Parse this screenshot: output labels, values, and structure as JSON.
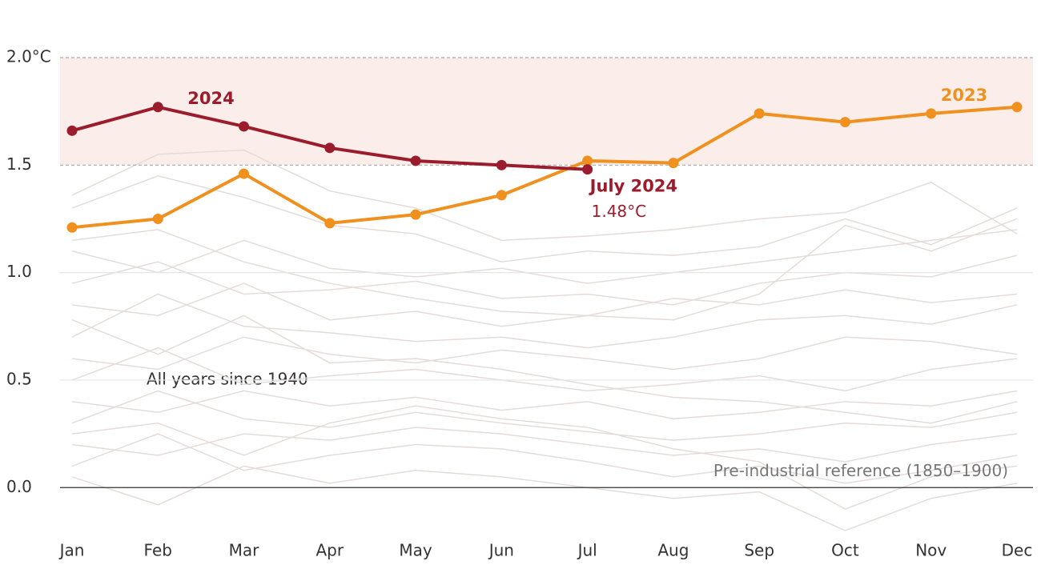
{
  "chart_data": {
    "type": "line",
    "categories": [
      "Jan",
      "Feb",
      "Mar",
      "Apr",
      "May",
      "Jun",
      "Jul",
      "Aug",
      "Sep",
      "Oct",
      "Nov",
      "Dec"
    ],
    "ylim": [
      -0.2,
      2.0
    ],
    "yticks": [
      {
        "value": 0,
        "label": "0.0"
      },
      0.5,
      {
        "value": 1,
        "label": "1.0"
      },
      1.5,
      {
        "value": 2,
        "label": "2.0°C"
      }
    ],
    "shade_range": [
      1.5,
      2.0
    ],
    "shade_color": "#fbeeea",
    "grid": true,
    "series": [
      {
        "name": "2024",
        "color": "#9b1c2c",
        "values": [
          1.66,
          1.77,
          1.68,
          1.58,
          1.52,
          1.5,
          1.48,
          null,
          null,
          null,
          null,
          null
        ],
        "value_labels": [
          null,
          null,
          null,
          null,
          null,
          null,
          "1.48°C",
          null,
          null,
          null,
          null,
          null
        ]
      },
      {
        "name": "2023",
        "color": "#f0901e",
        "values": [
          1.21,
          1.25,
          1.46,
          1.23,
          1.27,
          1.36,
          1.52,
          1.51,
          1.74,
          1.7,
          1.74,
          1.77
        ]
      }
    ],
    "annotations": {
      "latest": "July 2024",
      "background": "All years since 1940",
      "reference": "Pre-industrial reference (1850–1900)"
    },
    "background_color": "#e4dcd8",
    "background_series": [
      [
        1.36,
        1.55,
        1.57,
        1.38,
        1.3,
        1.15,
        1.17,
        1.2,
        1.25,
        1.28,
        1.42,
        1.18
      ],
      [
        1.3,
        1.45,
        1.35,
        1.22,
        1.18,
        1.05,
        1.1,
        1.08,
        1.12,
        1.25,
        1.13,
        1.3
      ],
      [
        1.1,
        1.0,
        1.15,
        1.02,
        0.98,
        1.02,
        0.95,
        1.0,
        1.05,
        1.1,
        1.15,
        1.2
      ],
      [
        0.95,
        1.05,
        0.9,
        0.92,
        0.96,
        0.88,
        0.9,
        0.85,
        0.95,
        1.0,
        0.98,
        1.08
      ],
      [
        0.85,
        0.8,
        0.95,
        0.78,
        0.82,
        0.75,
        0.8,
        0.88,
        0.85,
        0.92,
        0.86,
        0.9
      ],
      [
        0.7,
        0.9,
        0.75,
        0.72,
        0.68,
        0.7,
        0.65,
        0.7,
        0.78,
        0.8,
        0.76,
        0.85
      ],
      [
        0.6,
        0.55,
        0.7,
        0.62,
        0.58,
        0.64,
        0.6,
        0.55,
        0.6,
        0.7,
        0.68,
        0.62
      ],
      [
        0.5,
        0.65,
        0.48,
        0.52,
        0.55,
        0.5,
        0.45,
        0.48,
        0.52,
        0.45,
        0.55,
        0.6
      ],
      [
        0.4,
        0.35,
        0.45,
        0.38,
        0.42,
        0.36,
        0.4,
        0.32,
        0.35,
        0.4,
        0.38,
        0.45
      ],
      [
        0.3,
        0.45,
        0.32,
        0.28,
        0.35,
        0.3,
        0.26,
        0.22,
        0.25,
        0.3,
        0.28,
        0.35
      ],
      [
        0.2,
        0.15,
        0.25,
        0.22,
        0.28,
        0.25,
        0.2,
        0.15,
        0.18,
        0.12,
        0.2,
        0.25
      ],
      [
        0.1,
        0.25,
        0.08,
        0.15,
        0.2,
        0.18,
        0.12,
        0.05,
        0.1,
        0.02,
        0.08,
        0.15
      ],
      [
        0.05,
        -0.08,
        0.1,
        0.02,
        0.08,
        0.05,
        0.0,
        -0.05,
        -0.02,
        -0.2,
        -0.05,
        0.02
      ],
      [
        0.25,
        0.3,
        0.15,
        0.3,
        0.38,
        0.32,
        0.28,
        0.18,
        0.12,
        -0.1,
        0.05,
        0.1
      ],
      [
        0.78,
        0.62,
        0.8,
        0.58,
        0.6,
        0.55,
        0.48,
        0.42,
        0.4,
        0.35,
        0.3,
        0.4
      ],
      [
        1.15,
        1.2,
        1.05,
        0.95,
        0.88,
        0.82,
        0.8,
        0.78,
        0.9,
        1.22,
        1.1,
        1.25
      ]
    ]
  }
}
